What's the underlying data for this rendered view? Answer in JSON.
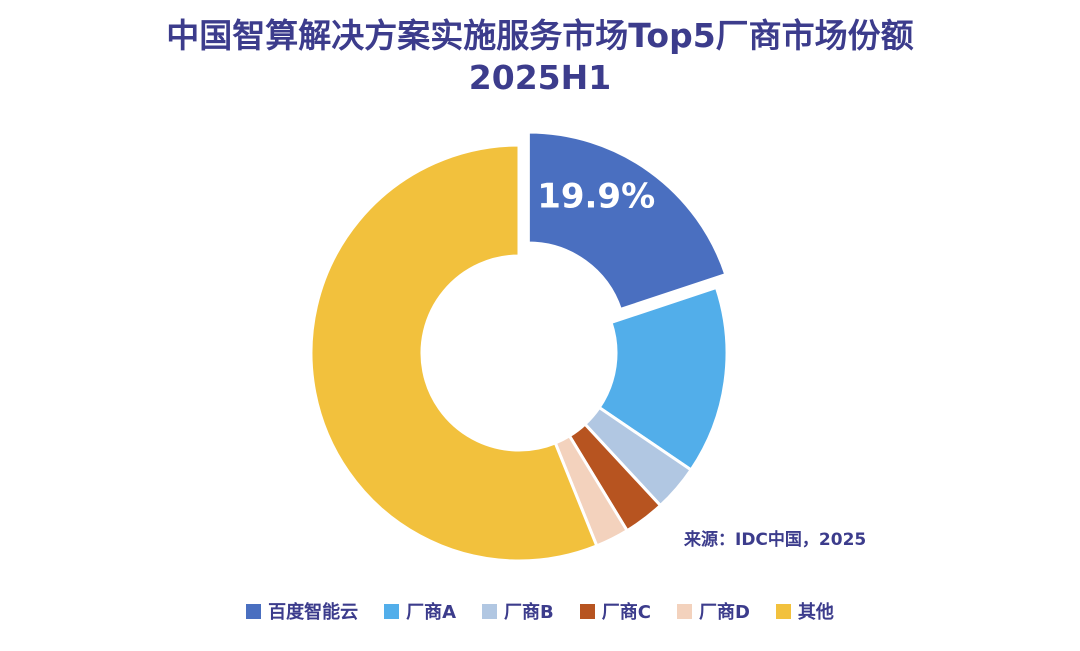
{
  "chart_data": {
    "type": "pie",
    "title_line1": "中国智算解决方案实施服务市场Top5厂商市场份额",
    "title_line2": "2025H1",
    "source": "来源：IDC中国，2025",
    "highlight_label": "19.9%",
    "slices": [
      {
        "name": "百度智能云",
        "value": 19.9,
        "color": "#4a6fc0",
        "exploded": true
      },
      {
        "name": "厂商A",
        "value": 14.6,
        "color": "#52aeea",
        "exploded": false
      },
      {
        "name": "厂商B",
        "value": 3.6,
        "color": "#b1c7e2",
        "exploded": false
      },
      {
        "name": "厂商C",
        "value": 3.2,
        "color": "#b75420",
        "exploded": false
      },
      {
        "name": "厂商D",
        "value": 2.6,
        "color": "#f3d2bd",
        "exploded": false
      },
      {
        "name": "其他",
        "value": 56.1,
        "color": "#f2c13d",
        "exploded": false
      }
    ]
  }
}
